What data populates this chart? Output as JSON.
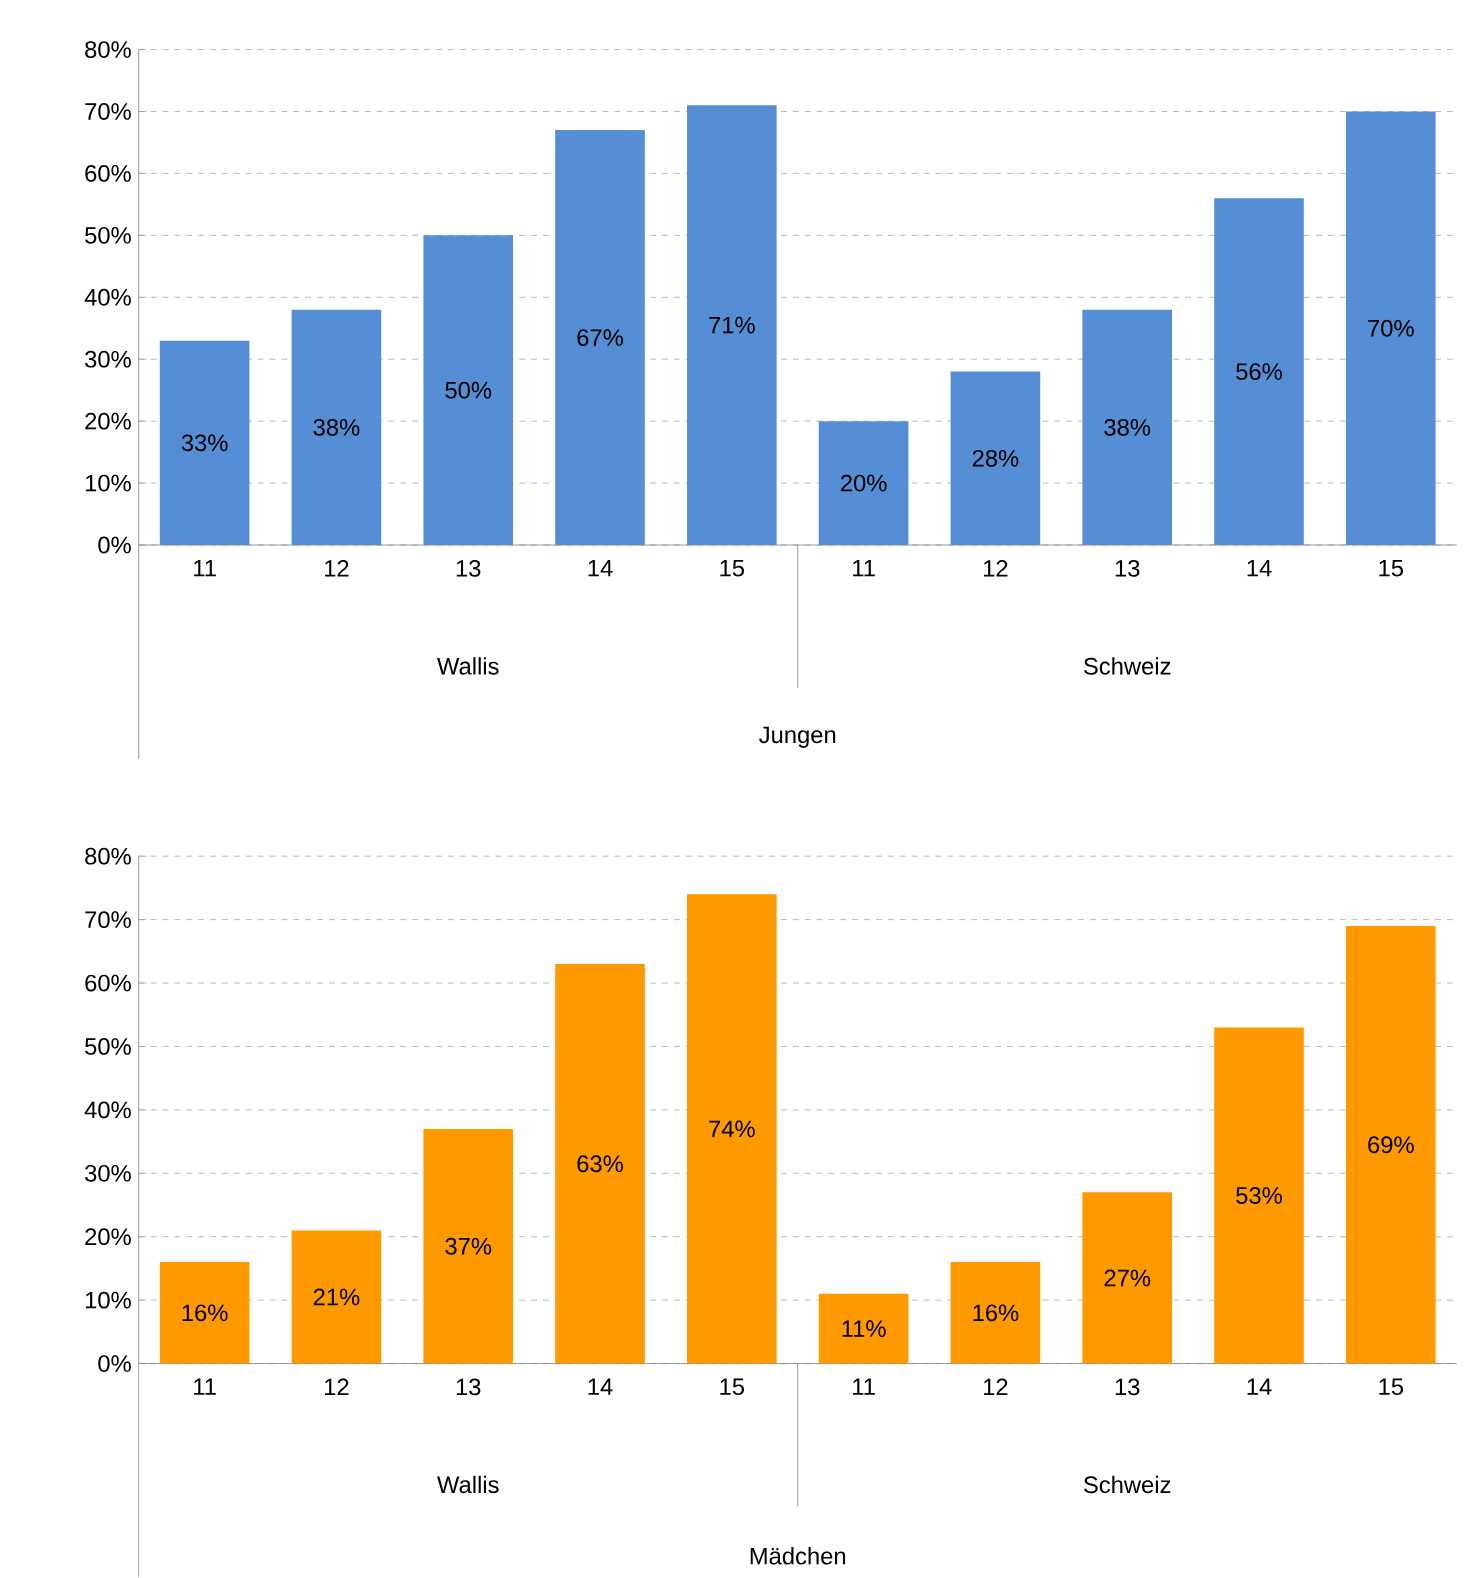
{
  "chart_data": [
    {
      "type": "bar",
      "categories": [
        "11",
        "12",
        "13",
        "14",
        "15",
        "11",
        "12",
        "13",
        "14",
        "15"
      ],
      "values": [
        33,
        38,
        50,
        67,
        71,
        20,
        28,
        38,
        56,
        70
      ],
      "value_labels": [
        "33%",
        "38%",
        "50%",
        "67%",
        "71%",
        "20%",
        "28%",
        "38%",
        "56%",
        "70%"
      ],
      "color": "#558ed5",
      "ylim": [
        0,
        80
      ],
      "yticks": [
        {
          "value": 0,
          "label": "0%"
        },
        {
          "value": 10,
          "label": "10%"
        },
        {
          "value": 20,
          "label": "20%"
        },
        {
          "value": 30,
          "label": "30%"
        },
        {
          "value": 40,
          "label": "40%"
        },
        {
          "value": 50,
          "label": "50%"
        },
        {
          "value": 60,
          "label": "60%"
        },
        {
          "value": 70,
          "label": "70%"
        },
        {
          "value": 80,
          "label": "80%"
        }
      ],
      "grid": "y",
      "xlabel": "Jungen",
      "annotations": [
        "Wallis",
        "Schweiz"
      ]
    },
    {
      "type": "bar",
      "categories": [
        "11",
        "12",
        "13",
        "14",
        "15",
        "11",
        "12",
        "13",
        "14",
        "15"
      ],
      "values": [
        16,
        21,
        37,
        63,
        74,
        11,
        16,
        27,
        53,
        69
      ],
      "value_labels": [
        "16%",
        "21%",
        "37%",
        "63%",
        "74%",
        "11%",
        "16%",
        "27%",
        "53%",
        "69%"
      ],
      "color": "#ff9900",
      "ylim": [
        0,
        80
      ],
      "yticks": [
        {
          "value": 0,
          "label": "0%"
        },
        {
          "value": 10,
          "label": "10%"
        },
        {
          "value": 20,
          "label": "20%"
        },
        {
          "value": 30,
          "label": "30%"
        },
        {
          "value": 40,
          "label": "40%"
        },
        {
          "value": 50,
          "label": "50%"
        },
        {
          "value": 60,
          "label": "60%"
        },
        {
          "value": 70,
          "label": "70%"
        },
        {
          "value": 80,
          "label": "80%"
        }
      ],
      "grid": "y",
      "xlabel": "Mädchen",
      "annotations": [
        "Wallis",
        "Schweiz"
      ]
    }
  ]
}
